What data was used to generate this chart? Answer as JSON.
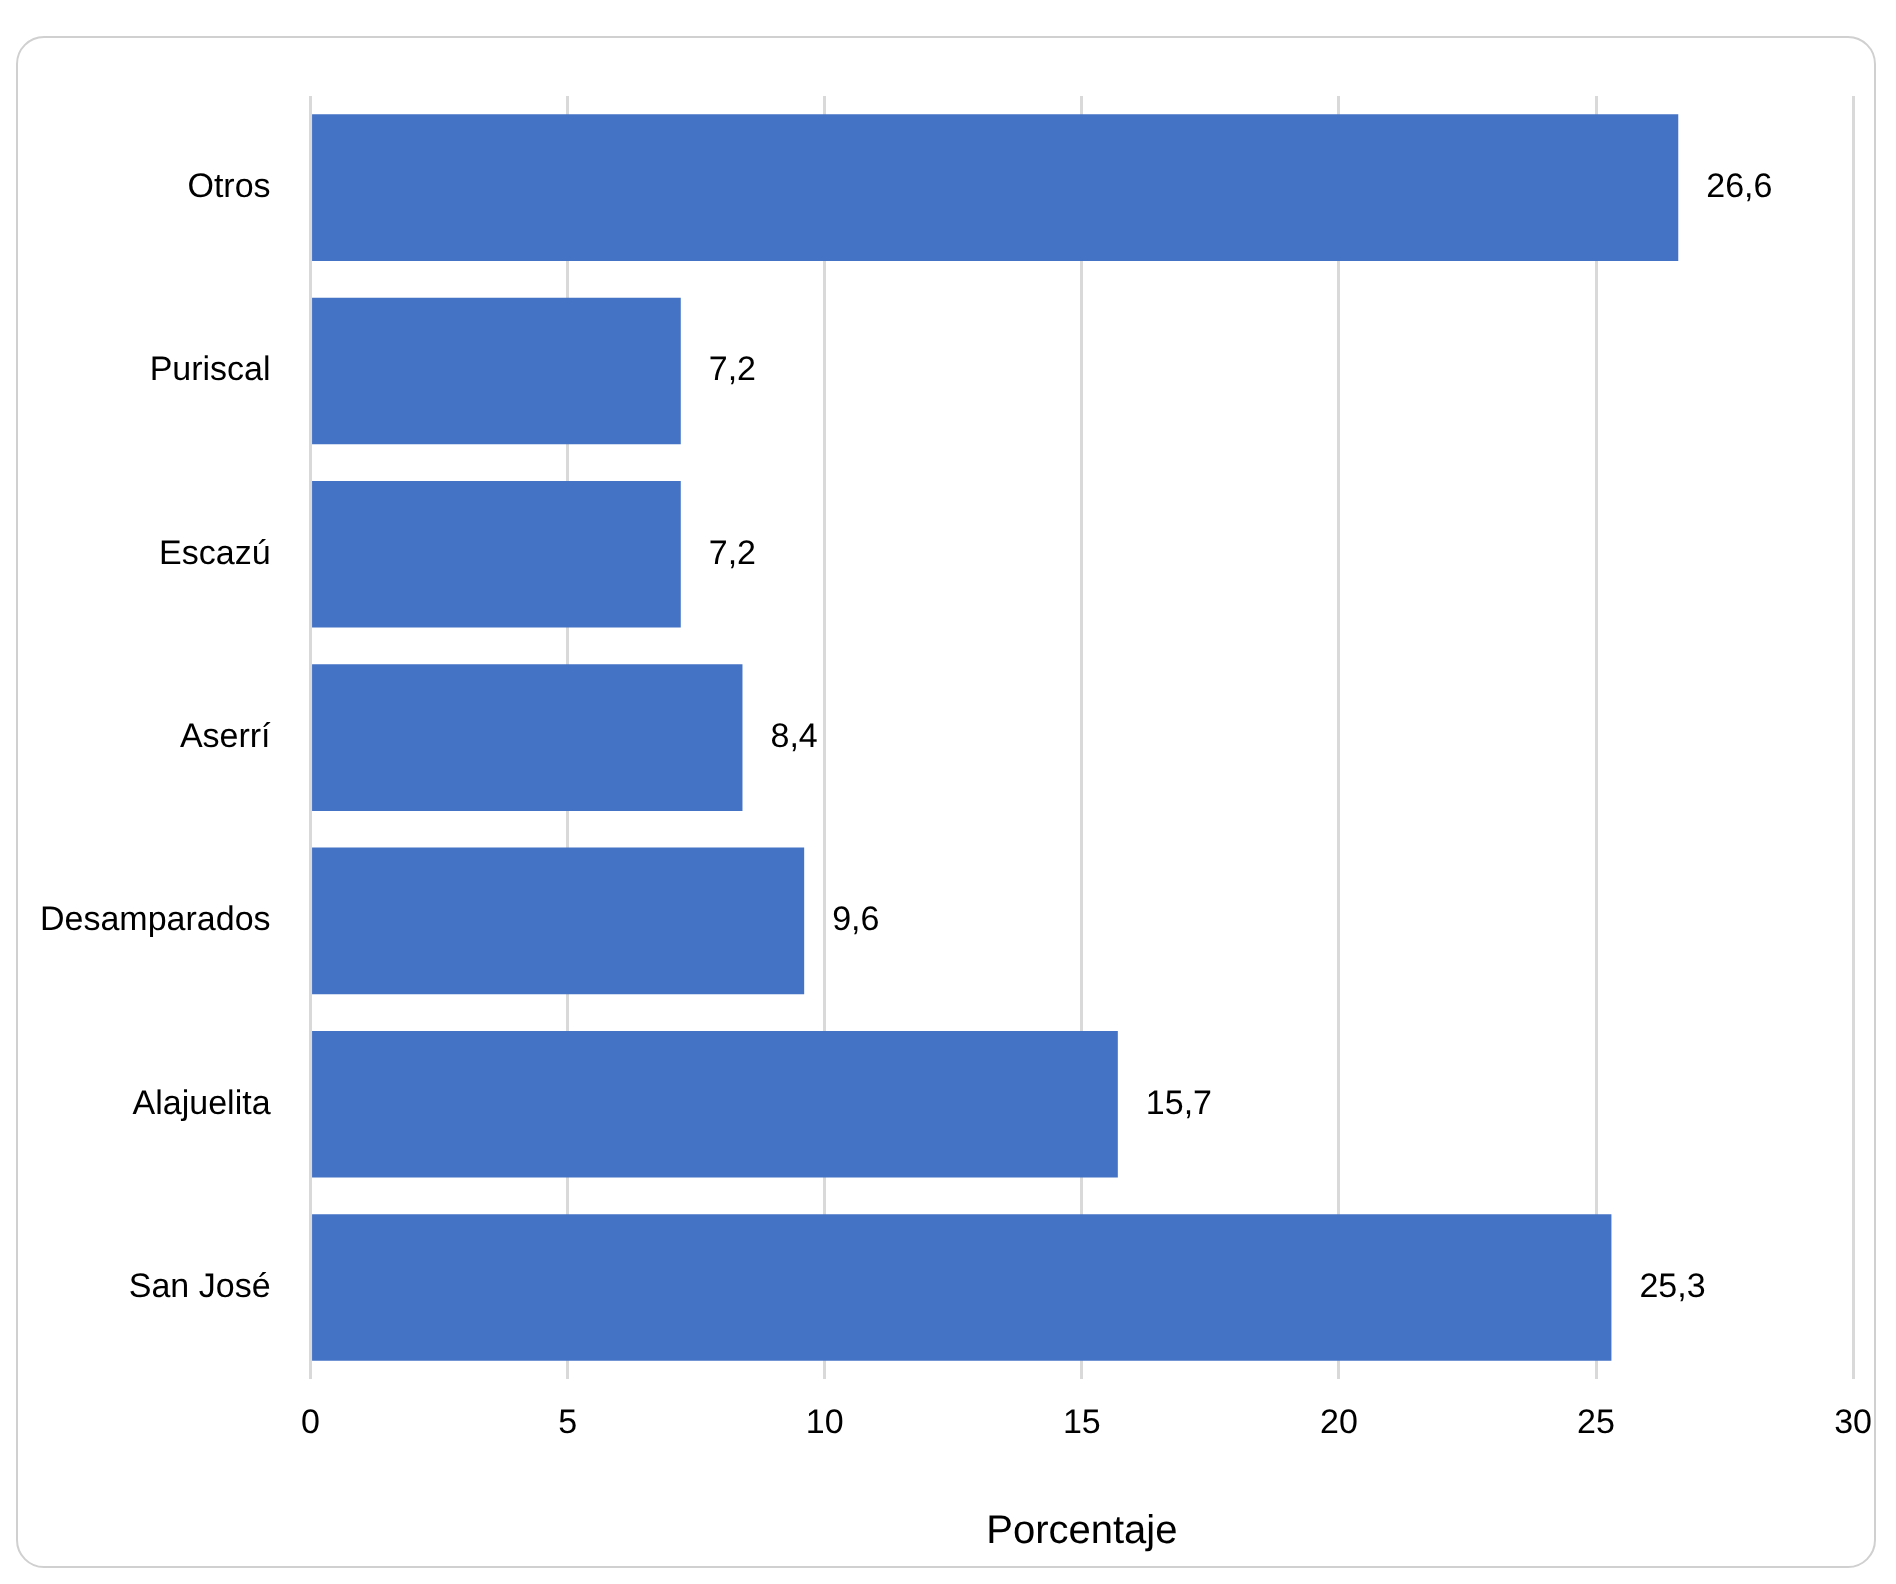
{
  "chart_data": {
    "type": "bar",
    "orientation": "horizontal",
    "xlabel": "Porcentaje",
    "categories": [
      "Otros",
      "Puriscal",
      "Escazú",
      "Aserrí",
      "Desamparados",
      "Alajuelita",
      "San José"
    ],
    "values": [
      26.6,
      7.2,
      7.2,
      8.4,
      9.6,
      15.7,
      25.3
    ],
    "value_labels": [
      "26,6",
      "7,2",
      "7,2",
      "8,4",
      "9,6",
      "15,7",
      "25,3"
    ],
    "color": "#4472c4",
    "xlim": [
      0,
      30
    ],
    "xticks": [
      0,
      5,
      10,
      15,
      20,
      25,
      30
    ],
    "grid": "x",
    "legend": false
  }
}
